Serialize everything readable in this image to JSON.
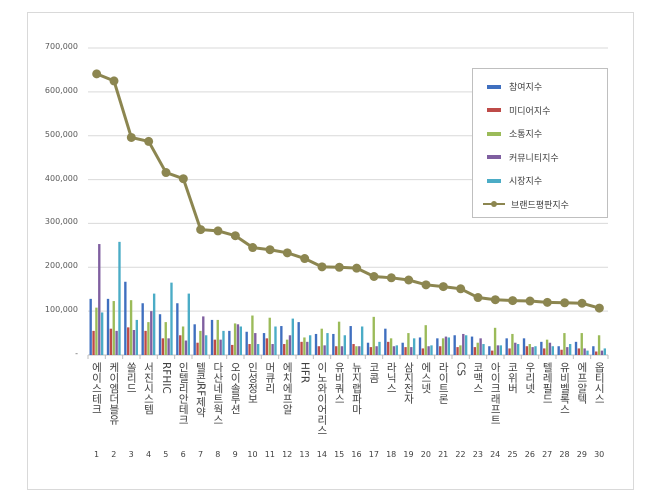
{
  "chart_data": {
    "type": "bar",
    "title": "",
    "xlabel": "",
    "ylabel": "",
    "ylim": [
      0,
      700000
    ],
    "yticks": [
      "-",
      "100,000",
      "200,000",
      "300,000",
      "400,000",
      "500,000",
      "600,000",
      "700,000"
    ],
    "grid": true,
    "legend_position": "top-right",
    "ranks": [
      "1",
      "2",
      "3",
      "4",
      "5",
      "6",
      "7",
      "8",
      "9",
      "10",
      "11",
      "12",
      "13",
      "14",
      "15",
      "16",
      "17",
      "18",
      "19",
      "20",
      "21",
      "22",
      "23",
      "24",
      "25",
      "26",
      "27",
      "28",
      "29",
      "30"
    ],
    "categories": [
      "에이스테크",
      "케이엠더블유",
      "쏠리드",
      "서진시스템",
      "RFHIC",
      "인텔리안테크",
      "텔콘RF제약",
      "다산네트웍스",
      "오이솔루션",
      "인성정보",
      "머큐리",
      "에치에프알",
      "HFR",
      "이노와이어리스",
      "유비쿼스",
      "뉴지랩파마",
      "코콤",
      "라닉스",
      "삼지전자",
      "에스넷",
      "라이트론",
      "CS",
      "코맥스",
      "아이크래프트",
      "코위버",
      "우리넷",
      "텔레필드",
      "유비벨록스",
      "에프알텍",
      "옵티시스"
    ],
    "series": [
      {
        "name": "참여지수",
        "type": "bar",
        "color": "#3f6fbf",
        "values": [
          128000,
          128000,
          167000,
          118000,
          93000,
          118000,
          70000,
          80000,
          55000,
          53000,
          50000,
          66000,
          75000,
          48000,
          48000,
          66000,
          28000,
          60000,
          28000,
          40000,
          38000,
          45000,
          42000,
          20000,
          38000,
          38000,
          30000,
          20000,
          30000,
          20000
        ]
      },
      {
        "name": "미디어지수",
        "type": "bar",
        "color": "#be4b48",
        "values": [
          55000,
          60000,
          63000,
          55000,
          38000,
          45000,
          28000,
          35000,
          23000,
          25000,
          38000,
          25000,
          30000,
          20000,
          20000,
          25000,
          18000,
          30000,
          18000,
          15000,
          20000,
          18000,
          18000,
          10000,
          15000,
          20000,
          15000,
          12000,
          15000,
          8000
        ]
      },
      {
        "name": "소통지수",
        "type": "bar",
        "color": "#9bbb59",
        "values": [
          108000,
          123000,
          125000,
          75000,
          75000,
          65000,
          55000,
          80000,
          72000,
          90000,
          85000,
          35000,
          40000,
          60000,
          76000,
          20000,
          87000,
          38000,
          50000,
          68000,
          38000,
          22000,
          28000,
          62000,
          48000,
          25000,
          35000,
          50000,
          50000,
          45000
        ]
      },
      {
        "name": "커뮤니티지수",
        "type": "bar",
        "color": "#7f5fa0",
        "values": [
          253000,
          55000,
          57000,
          100000,
          38000,
          33000,
          88000,
          35000,
          70000,
          50000,
          25000,
          45000,
          30000,
          22000,
          20000,
          20000,
          20000,
          20000,
          18000,
          20000,
          42000,
          48000,
          38000,
          22000,
          28000,
          18000,
          28000,
          18000,
          15000,
          10000
        ]
      },
      {
        "name": "시장지수",
        "type": "bar",
        "color": "#4bacc6",
        "values": [
          97000,
          258000,
          80000,
          140000,
          165000,
          140000,
          45000,
          55000,
          65000,
          25000,
          65000,
          83000,
          45000,
          50000,
          45000,
          65000,
          30000,
          22000,
          38000,
          22000,
          40000,
          45000,
          25000,
          22000,
          25000,
          20000,
          20000,
          25000,
          10000,
          15000
        ]
      },
      {
        "name": "브랜드평판지수",
        "type": "line",
        "color": "#8c8650",
        "values": [
          641000,
          625000,
          496000,
          487000,
          416000,
          402000,
          286000,
          283000,
          272000,
          245000,
          240000,
          233000,
          220000,
          201000,
          200000,
          198000,
          179000,
          176000,
          171000,
          160000,
          156000,
          151000,
          131000,
          126000,
          124000,
          123000,
          120000,
          119000,
          118000,
          107000
        ]
      }
    ]
  }
}
